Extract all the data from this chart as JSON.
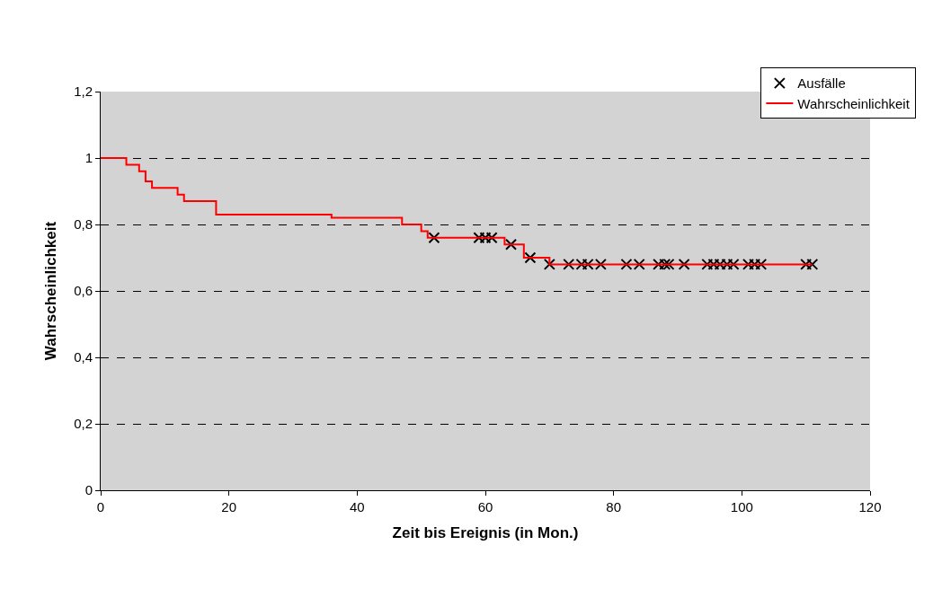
{
  "chart_data": {
    "type": "step",
    "xlabel": "Zeit bis Ereignis (in Mon.)",
    "ylabel": "Wahrscheinlichkeit",
    "xlim": [
      0,
      120
    ],
    "xticks": [
      0,
      20,
      40,
      60,
      80,
      100,
      120
    ],
    "ylim": [
      0,
      1.2
    ],
    "yticks": [
      0,
      {
        "value": 0.2,
        "label": "0,2"
      },
      {
        "value": 0.4,
        "label": "0,4"
      },
      {
        "value": 0.6,
        "label": "0,6"
      },
      {
        "value": 0.8,
        "label": "0,8"
      },
      1,
      {
        "value": 1.2,
        "label": "1,2"
      }
    ],
    "grid": "y",
    "legend": "top right",
    "series": [
      {
        "name": "Ausfälle",
        "type": "scatter",
        "marker": "cross",
        "color": "#000000",
        "x": [
          52,
          59,
          60,
          61,
          64,
          67,
          70,
          73,
          75,
          76,
          78,
          82,
          84,
          87,
          88,
          88.6,
          91,
          94.6,
          95.6,
          96.6,
          97.7,
          98.7,
          101,
          102,
          103,
          110,
          111
        ],
        "values": [
          0.76,
          0.76,
          0.76,
          0.76,
          0.74,
          0.7,
          0.68,
          0.68,
          0.68,
          0.68,
          0.68,
          0.68,
          0.68,
          0.68,
          0.68,
          0.68,
          0.68,
          0.68,
          0.68,
          0.68,
          0.68,
          0.68,
          0.68,
          0.68,
          0.68,
          0.68,
          0.68
        ]
      },
      {
        "name": "Wahrscheinlichkeit",
        "color": "#ff0000",
        "line_style": "solid",
        "x": [
          0,
          4,
          6,
          7,
          8,
          12,
          13,
          18,
          36,
          47,
          50,
          51,
          63,
          66,
          70,
          111
        ],
        "values": [
          1.0,
          0.98,
          0.96,
          0.93,
          0.91,
          0.89,
          0.87,
          0.83,
          0.82,
          0.8,
          0.78,
          0.76,
          0.74,
          0.7,
          0.68,
          0.68
        ]
      }
    ]
  }
}
